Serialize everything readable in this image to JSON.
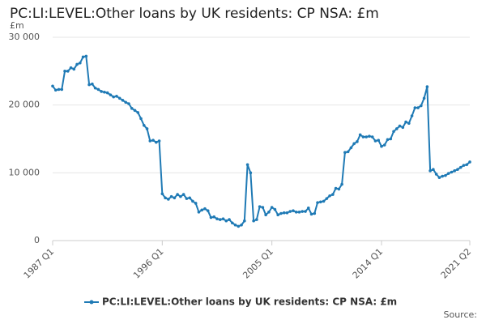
{
  "chart_data": {
    "type": "line",
    "title": "PC:LI:LEVEL:Other loans by UK residents: CP NSA: £m",
    "y_unit": "£m",
    "source": "Source:",
    "categories": [
      "1987 Q1",
      null,
      null,
      null,
      null,
      null,
      null,
      null,
      null,
      null,
      null,
      null,
      null,
      null,
      null,
      null,
      null,
      null,
      null,
      null,
      null,
      null,
      null,
      null,
      null,
      null,
      null,
      null,
      null,
      null,
      null,
      null,
      null,
      null,
      null,
      null,
      "1996 Q1",
      null,
      null,
      null,
      null,
      null,
      null,
      null,
      null,
      null,
      null,
      null,
      null,
      null,
      null,
      null,
      null,
      null,
      null,
      null,
      null,
      null,
      null,
      null,
      null,
      null,
      null,
      null,
      null,
      null,
      null,
      null,
      null,
      null,
      null,
      null,
      "2005 Q1",
      null,
      null,
      null,
      null,
      null,
      null,
      null,
      null,
      null,
      null,
      null,
      null,
      null,
      null,
      null,
      null,
      null,
      null,
      null,
      null,
      null,
      null,
      null,
      null,
      null,
      null,
      null,
      null,
      null,
      null,
      null,
      null,
      null,
      null,
      null,
      "2014 Q1",
      null,
      null,
      null,
      null,
      null,
      null,
      null,
      null,
      null,
      null,
      null,
      null,
      null,
      null,
      null,
      null,
      null,
      null,
      null,
      null,
      null,
      null,
      null,
      null,
      null,
      null,
      null,
      null,
      "2021 Q2"
    ],
    "series": [
      {
        "name": "PC:LI:LEVEL:Other loans by UK residents: CP NSA: £m",
        "color": "#1f7ab5",
        "values": [
          22800,
          22200,
          22300,
          22300,
          25000,
          25000,
          25500,
          25300,
          26000,
          26200,
          27100,
          27200,
          23000,
          23100,
          22500,
          22300,
          22000,
          21900,
          21800,
          21500,
          21200,
          21300,
          21000,
          20700,
          20400,
          20200,
          19500,
          19200,
          18900,
          18000,
          17000,
          16500,
          14700,
          14800,
          14500,
          14700,
          6900,
          6300,
          6100,
          6500,
          6300,
          6800,
          6500,
          6800,
          6200,
          6300,
          5800,
          5500,
          4200,
          4500,
          4700,
          4400,
          3400,
          3500,
          3200,
          3100,
          3200,
          2900,
          3100,
          2600,
          2300,
          2100,
          2300,
          2900,
          11200,
          10000,
          2900,
          3100,
          5000,
          4900,
          3800,
          4200,
          4900,
          4600,
          3800,
          4000,
          4100,
          4100,
          4300,
          4400,
          4200,
          4200,
          4300,
          4300,
          4800,
          3900,
          4000,
          5600,
          5700,
          5800,
          6200,
          6600,
          6800,
          7700,
          7600,
          8300,
          13000,
          13100,
          13700,
          14300,
          14600,
          15600,
          15300,
          15300,
          15400,
          15300,
          14700,
          14800,
          13900,
          14100,
          14900,
          15000,
          16100,
          16500,
          16900,
          16700,
          17500,
          17300,
          18400,
          19600,
          19600,
          19900,
          21000,
          22700,
          10300,
          10500,
          9800,
          9300,
          9500,
          9600,
          9900,
          10100,
          10300,
          10500,
          10800,
          11100,
          11200,
          11600
        ]
      }
    ],
    "ylim": [
      0,
      30000
    ],
    "yticks": [
      0,
      {
        "value": 10000,
        "label": "10 000"
      },
      {
        "value": 20000,
        "label": "20 000"
      },
      {
        "value": 30000,
        "label": "30 000"
      }
    ],
    "grid": true
  }
}
